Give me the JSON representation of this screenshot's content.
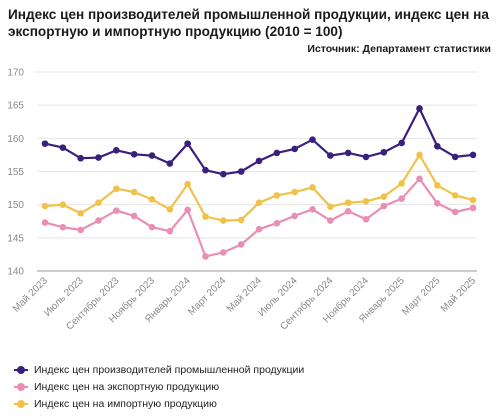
{
  "chart_data": {
    "type": "line",
    "title": "Индекс цен производителей промышленной продукции, индекс цен на экспортную и импортную продукцию (2010 = 100)",
    "source": "Источник: Департамент статистики",
    "ylim": [
      140,
      170
    ],
    "yticks": [
      140,
      145,
      150,
      155,
      160,
      165,
      170
    ],
    "grid": true,
    "legend_position": "bottom",
    "x": [
      "Май 2023",
      "Июнь 2023",
      "Июль 2023",
      "Август 2023",
      "Сентябрь 2023",
      "Октябрь 2023",
      "Ноябрь 2023",
      "Декабрь 2023",
      "Январь 2024",
      "Февраль 2024",
      "Март 2024",
      "Апрель 2024",
      "Май 2024",
      "Июнь 2024",
      "Июль 2024",
      "Август 2024",
      "Сентябрь 2024",
      "Октябрь 2024",
      "Ноябрь 2024",
      "Декабрь 2024",
      "Январь 2025",
      "Февраль 2025",
      "Март 2025",
      "Апрель 2025",
      "Май 2025"
    ],
    "xtick_labels": [
      "Май 2023",
      "Июль 2023",
      "Сентябрь 2023",
      "Ноябрь 2023",
      "Январь 2024",
      "Март 2024",
      "Май 2024",
      "Июль 2024",
      "Сентябрь 2024",
      "Ноябрь 2024",
      "Январь 2025",
      "Март 2025",
      "Май 2025"
    ],
    "series": [
      {
        "name": "Индекс цен производителей промышленной продукции",
        "color": "#3b1f7d",
        "values": [
          159.2,
          158.6,
          157.0,
          157.1,
          158.2,
          157.6,
          157.4,
          156.2,
          159.2,
          155.2,
          154.6,
          155.0,
          156.6,
          157.8,
          158.4,
          159.8,
          157.4,
          157.8,
          157.2,
          157.9,
          159.3,
          164.5,
          158.8,
          157.2,
          157.5
        ]
      },
      {
        "name": "Индекс цен на экспортную продукцию",
        "color": "#e98fb6",
        "values": [
          147.3,
          146.6,
          146.2,
          147.6,
          149.1,
          148.3,
          146.6,
          146.0,
          149.2,
          142.2,
          142.8,
          144.0,
          146.3,
          147.2,
          148.3,
          149.3,
          147.6,
          149.0,
          147.8,
          149.8,
          150.9,
          153.9,
          150.2,
          148.9,
          149.5
        ]
      },
      {
        "name": "Индекс цен на импортную продукцию",
        "color": "#f1c24a",
        "values": [
          149.8,
          150.0,
          148.7,
          150.3,
          152.4,
          151.9,
          150.8,
          149.3,
          153.1,
          148.2,
          147.6,
          147.7,
          150.3,
          151.4,
          151.9,
          152.6,
          149.7,
          150.3,
          150.5,
          151.2,
          153.2,
          157.5,
          152.9,
          151.4,
          150.7
        ]
      }
    ]
  }
}
